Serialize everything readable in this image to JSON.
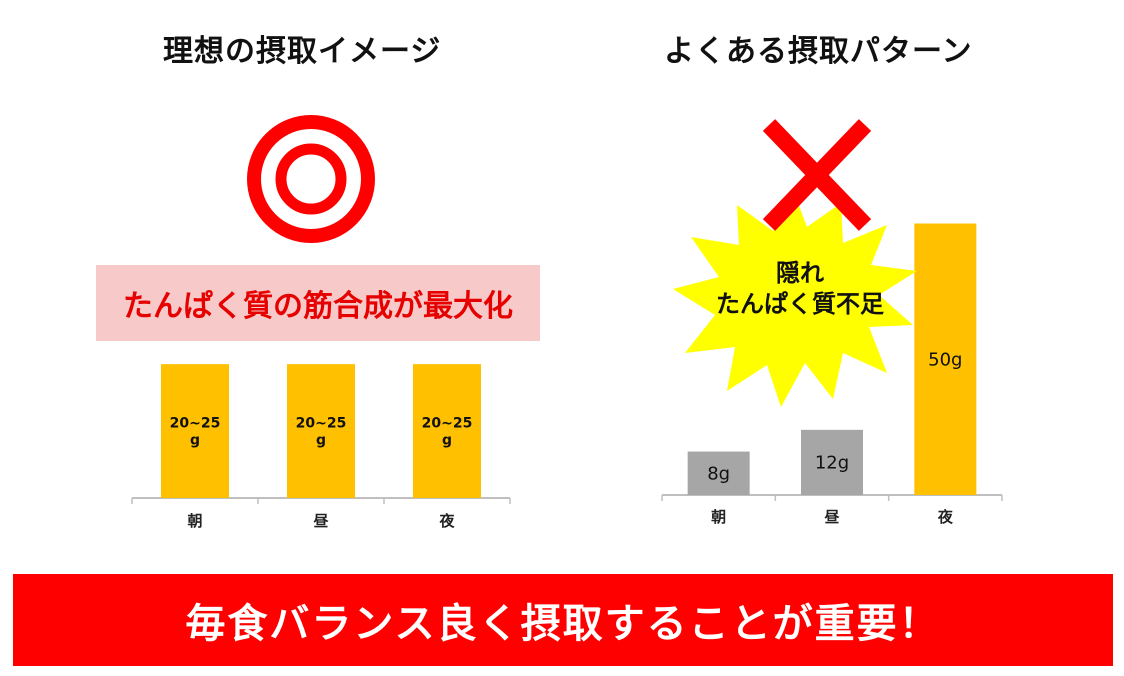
{
  "left_title": "理想の摂取イメージ",
  "right_title": "よくある摂取パターン",
  "left_callout": "たんぱく質の筋合成が最大化",
  "burst_line1": "隠れ",
  "burst_line2": "たんぱく質不足",
  "banner": "毎食バランス良く摂取することが重要！",
  "colors": {
    "accent_red": "#ff0000",
    "bar_gold": "#ffc000",
    "bar_gray": "#a6a6a6",
    "burst_yellow": "#ffff00",
    "pink": "#f8c9c9"
  },
  "chart_data": [
    {
      "type": "bar",
      "categories": [
        "朝",
        "昼",
        "夜"
      ],
      "values": [
        22.5,
        22.5,
        22.5
      ],
      "data_labels": [
        "20~25\ng",
        "20~25\ng",
        "20~25\ng"
      ],
      "title": "理想の摂取イメージ"
    },
    {
      "type": "bar",
      "categories": [
        "朝",
        "昼",
        "夜"
      ],
      "values": [
        8,
        12,
        50
      ],
      "data_labels": [
        "8g",
        "12g",
        "50g"
      ],
      "title": "よくある摂取パターン"
    }
  ]
}
